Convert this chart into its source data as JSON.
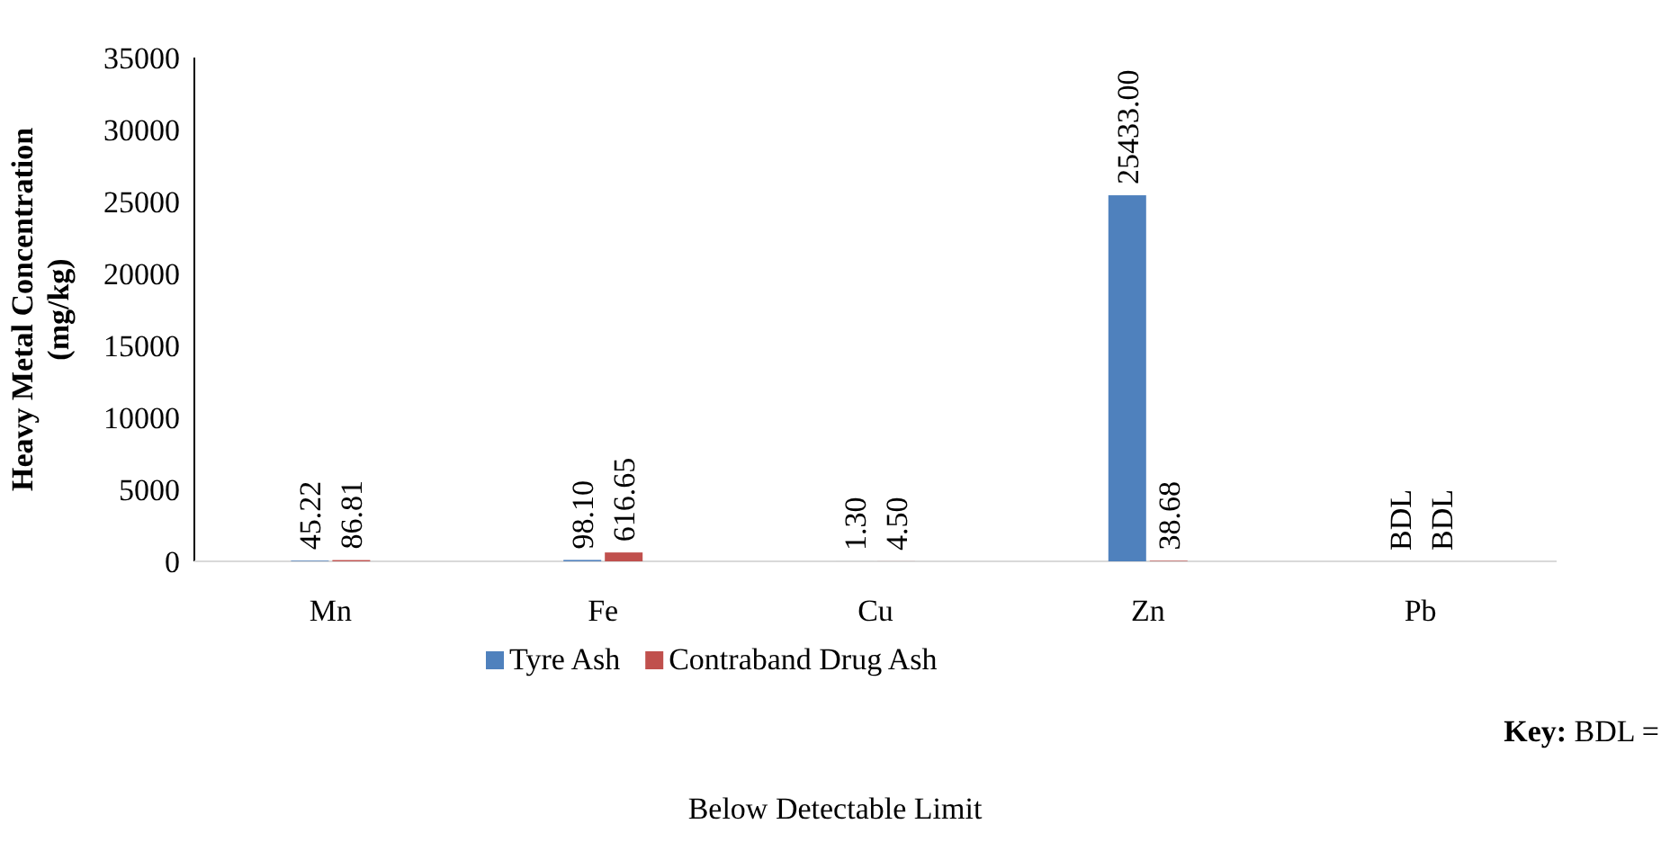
{
  "chart_data": {
    "type": "bar",
    "ylabel": "Heavy Metal Concentration (mg/kg)",
    "categories": [
      "Mn",
      "Fe",
      "Cu",
      "Zn",
      "Pb"
    ],
    "series": [
      {
        "name": "Tyre Ash",
        "color": "#4f81bd",
        "values": [
          45.22,
          98.1,
          1.3,
          25433.0,
          null
        ],
        "value_labels": [
          "45.22",
          "98.10",
          "1.30",
          "25433.00",
          "BDL"
        ]
      },
      {
        "name": "Contraband Drug Ash",
        "color": "#c0504d",
        "values": [
          86.81,
          616.65,
          4.5,
          38.68,
          null
        ],
        "value_labels": [
          "86.81",
          "616.65",
          "4.50",
          "38.68",
          "BDL"
        ]
      }
    ],
    "ylim": [
      0,
      35000
    ],
    "yticks": [
      0,
      5000,
      10000,
      15000,
      20000,
      25000,
      30000,
      35000
    ],
    "grid": false,
    "legend": "bottom",
    "annotations": [
      "Key: BDL =",
      "Below Detectable Limit"
    ]
  }
}
